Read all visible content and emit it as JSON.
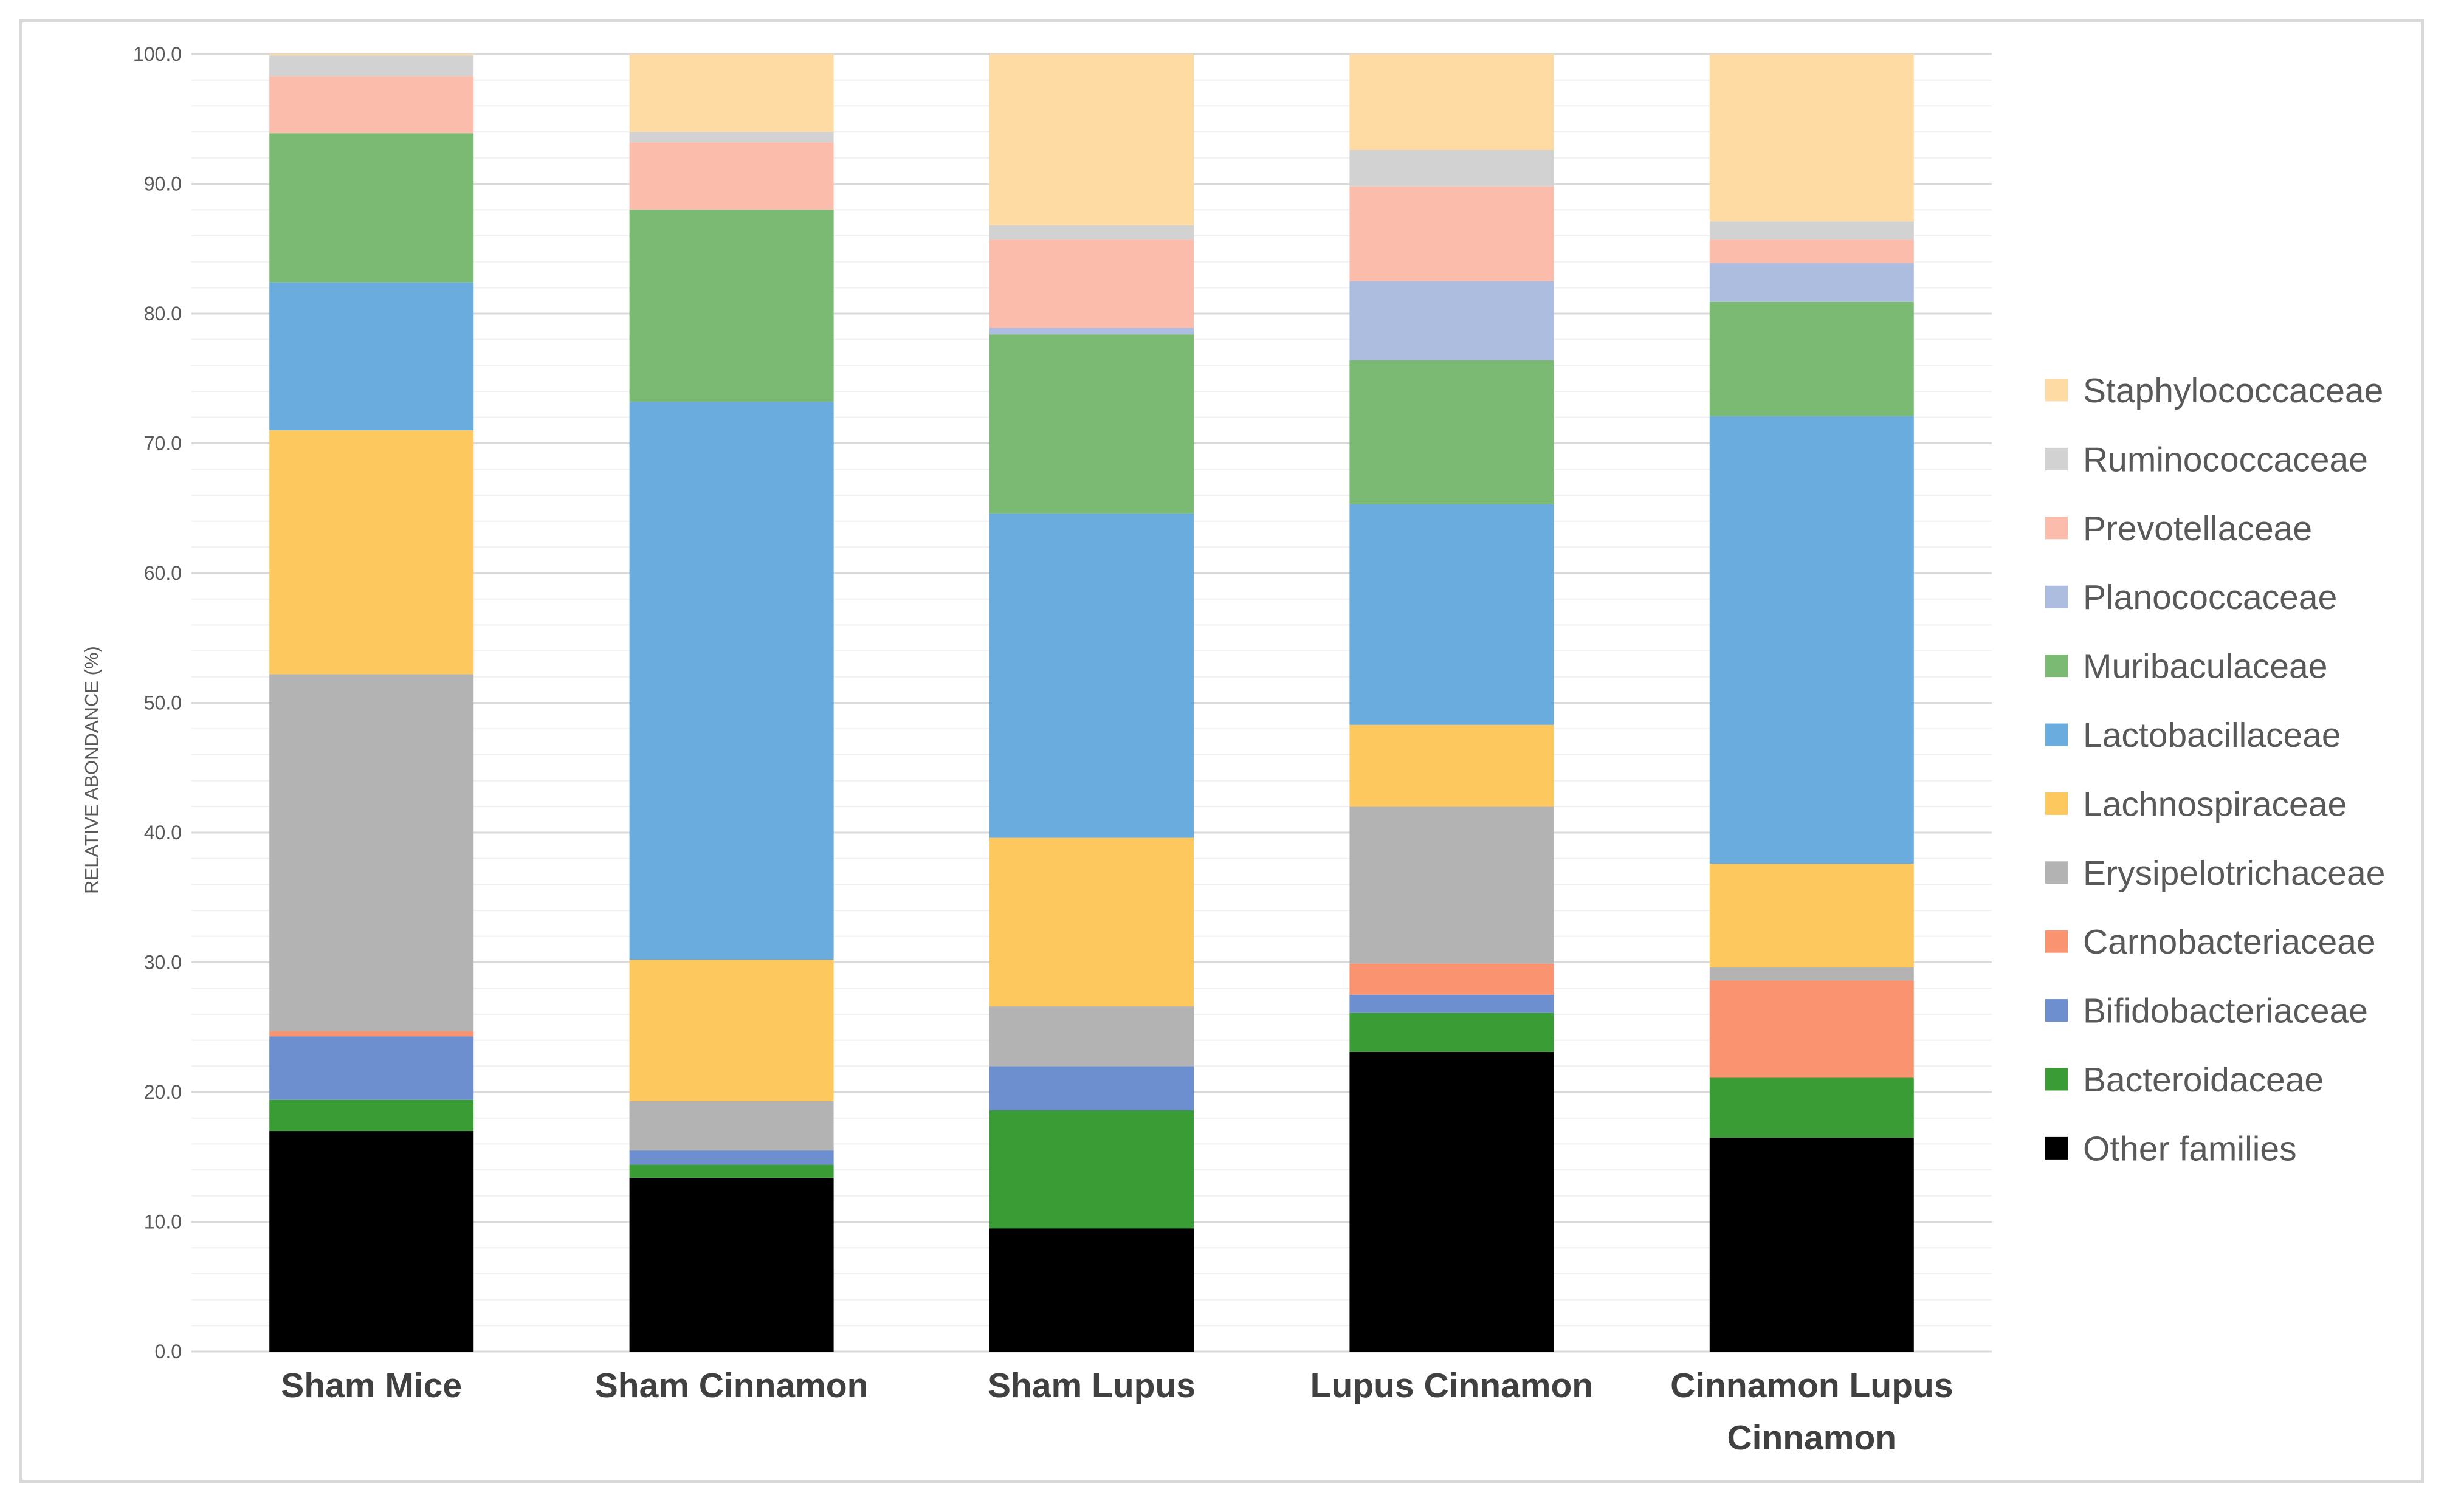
{
  "chart_data": {
    "type": "bar",
    "stacked": true,
    "title": "",
    "xlabel": "",
    "ylabel": "RELATIVE ABONDANCE (%)",
    "ylim": [
      0,
      100
    ],
    "y_major_step": 10,
    "y_minor_step": 2,
    "grid": true,
    "legend_position": "right",
    "categories": [
      "Sham Mice",
      "Sham Cinnamon",
      "Sham Lupus",
      "Lupus Cinnamon",
      "Cinnamon Lupus Cinnamon"
    ],
    "category_lines": [
      [
        "Sham Mice"
      ],
      [
        "Sham Cinnamon"
      ],
      [
        "Sham Lupus"
      ],
      [
        "Lupus Cinnamon"
      ],
      [
        "Cinnamon Lupus",
        "Cinnamon"
      ]
    ],
    "y_ticks": [
      "0.0",
      "10.0",
      "20.0",
      "30.0",
      "40.0",
      "50.0",
      "60.0",
      "70.0",
      "80.0",
      "90.0",
      "100.0"
    ],
    "series": [
      {
        "name": "Other families",
        "color": "#000000",
        "values": [
          17.0,
          13.4,
          9.5,
          23.1,
          16.5
        ]
      },
      {
        "name": "Bacteroidaceae",
        "color": "#3a9c35",
        "values": [
          2.4,
          1.0,
          9.1,
          3.0,
          4.6
        ]
      },
      {
        "name": "Bifidobacteriaceae",
        "color": "#6d8fcf",
        "values": [
          4.9,
          1.1,
          3.4,
          1.4,
          0.0
        ]
      },
      {
        "name": "Carnobacteriaceae",
        "color": "#fa9370",
        "values": [
          0.4,
          0.0,
          0.0,
          2.4,
          7.5
        ]
      },
      {
        "name": "Erysipelotrichaceae",
        "color": "#b3b3b3",
        "values": [
          27.5,
          3.8,
          4.6,
          12.1,
          1.0
        ]
      },
      {
        "name": "Lachnospiraceae",
        "color": "#fdc95e",
        "values": [
          18.8,
          10.9,
          13.0,
          6.3,
          8.0
        ]
      },
      {
        "name": "Lactobacillaceae",
        "color": "#69acdd",
        "values": [
          11.4,
          43.0,
          25.0,
          17.0,
          34.5
        ]
      },
      {
        "name": "Muribaculaceae",
        "color": "#7aba72",
        "values": [
          11.5,
          14.8,
          13.8,
          11.1,
          8.8
        ]
      },
      {
        "name": "Planococcaceae",
        "color": "#acbde0",
        "values": [
          0.0,
          0.0,
          0.5,
          6.1,
          3.0
        ]
      },
      {
        "name": "Prevotellaceae",
        "color": "#fcbcac",
        "values": [
          4.4,
          5.2,
          6.8,
          7.3,
          1.8
        ]
      },
      {
        "name": "Ruminococcaceae",
        "color": "#d2d2d2",
        "values": [
          1.6,
          0.8,
          1.1,
          2.8,
          1.4
        ]
      },
      {
        "name": "Staphylococcaceae",
        "color": "#fedba2",
        "values": [
          0.1,
          6.0,
          13.2,
          7.4,
          12.9
        ]
      }
    ]
  }
}
